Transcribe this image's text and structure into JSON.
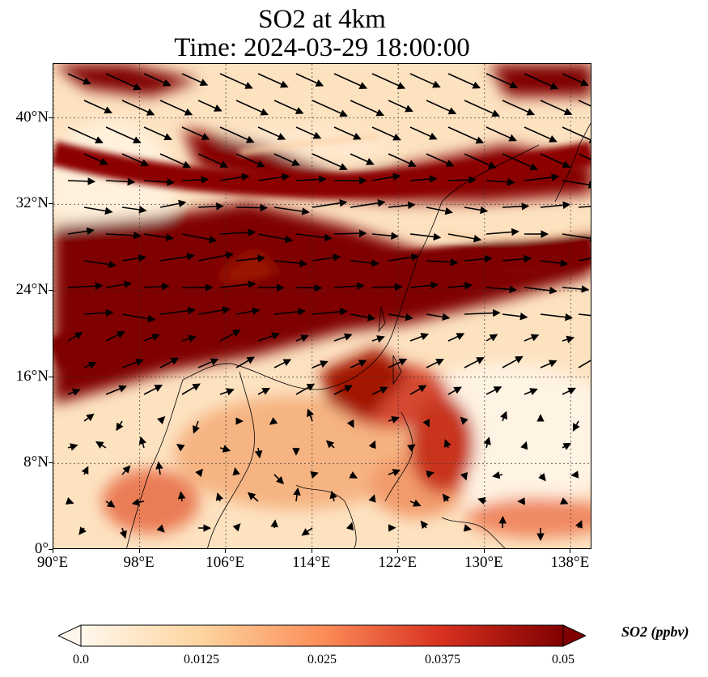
{
  "title": {
    "line1": "SO2 at 4km",
    "line2": "Time: 2024-03-29 18:00:00"
  },
  "map": {
    "extent": {
      "lon": [
        90,
        140
      ],
      "lat": [
        0,
        45
      ]
    },
    "x_ticks": [
      "90°E",
      "98°E",
      "106°E",
      "114°E",
      "122°E",
      "130°E",
      "138°E"
    ],
    "y_ticks": [
      "0°",
      "8°N",
      "16°N",
      "24°N",
      "32°N",
      "40°N"
    ],
    "gridlines": true,
    "features": [
      "coastlines",
      "SO2 concentration field",
      "wind vectors"
    ]
  },
  "colorbar": {
    "label": "SO2 (ppbv)",
    "ticks": [
      "0.0",
      "0.0125",
      "0.025",
      "0.0375",
      "0.05"
    ],
    "colormap": "OrRd",
    "colors": [
      "#fff7ec",
      "#fdd49e",
      "#fc8d59",
      "#d7301f",
      "#7f0000"
    ],
    "extend": "both"
  }
}
